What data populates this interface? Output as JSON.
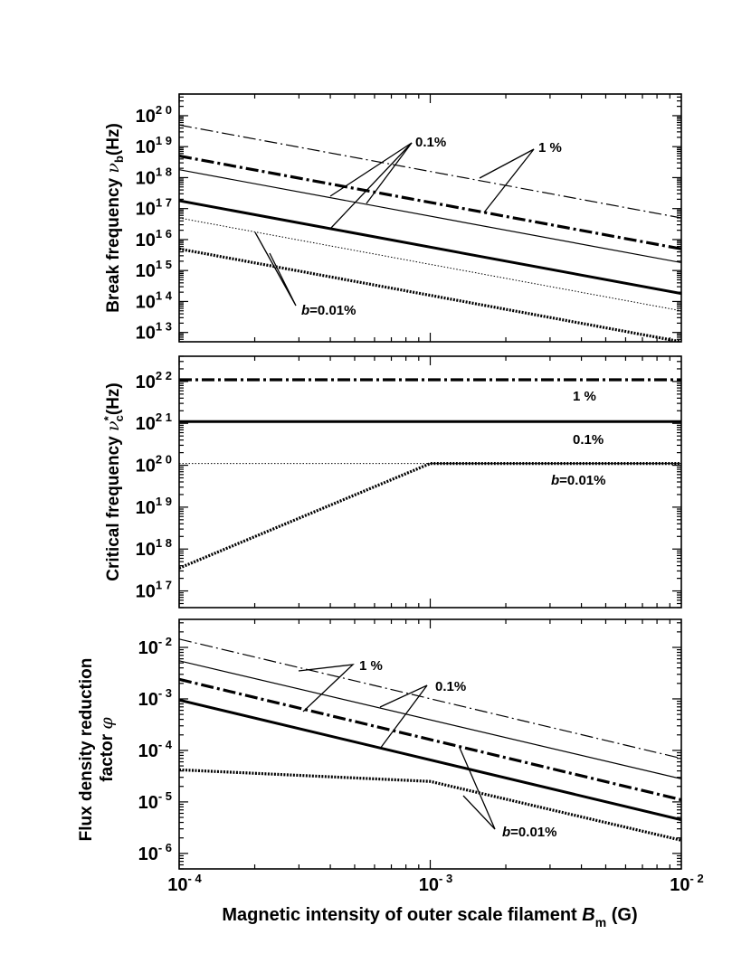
{
  "figure": {
    "xlabel": "Magnetic intensity of outer scale filament B_m (G)",
    "xlabel_parts": {
      "main": "Magnetic intensity of outer scale filament ",
      "symbol": "B",
      "sub": "m",
      "unit": " (G)"
    }
  },
  "chart_data": [
    {
      "type": "line",
      "ylabel": "Break frequency ν_b(Hz)",
      "ylabel_parts": {
        "main": "Break frequency ",
        "symbol": "ν",
        "sub": "b",
        "unit": "(Hz)"
      },
      "xscale": "log",
      "yscale": "log",
      "xlim": [
        0.0001,
        0.01
      ],
      "ylim": [
        5000000000000.0,
        5e+20
      ],
      "x_tick_labels": [
        "10^-4",
        "10^-3",
        "10^-2"
      ],
      "y_ticks": [
        13,
        14,
        15,
        16,
        17,
        18,
        19,
        20
      ],
      "series": [
        {
          "style": "thin dash-dot",
          "points": [
            [
              0.0001,
              5e+19
            ],
            [
              0.01,
              5e+16
            ]
          ]
        },
        {
          "style": "thick dash-dot",
          "points": [
            [
              0.0001,
              5e+18
            ],
            [
              0.01,
              5000000000000000.0
            ]
          ]
        },
        {
          "style": "thin solid",
          "points": [
            [
              0.0001,
              1.8e+18
            ],
            [
              0.01,
              1800000000000000.0
            ]
          ]
        },
        {
          "style": "thick solid",
          "points": [
            [
              0.0001,
              1.8e+17
            ],
            [
              0.01,
              180000000000000.0
            ]
          ]
        },
        {
          "style": "thin dotted",
          "points": [
            [
              0.0001,
              5e+16
            ],
            [
              0.01,
              50000000000000.0
            ]
          ]
        },
        {
          "style": "thick dotted",
          "points": [
            [
              0.0001,
              5000000000000000.0
            ],
            [
              0.01,
              5000000000000.0
            ]
          ]
        }
      ],
      "annotations": [
        {
          "text": "0.1%"
        },
        {
          "text": "1 %"
        },
        {
          "text": "b=0.01%",
          "italic_prefix": "b",
          "rest": "=0.01%"
        }
      ]
    },
    {
      "type": "line",
      "ylabel": "Critical frequency ν*_c(Hz)",
      "ylabel_parts": {
        "main": "Critical frequency ",
        "symbol": "ν",
        "sup": "*",
        "sub": "c",
        "unit": "(Hz)"
      },
      "xscale": "log",
      "yscale": "log",
      "xlim": [
        0.0001,
        0.01
      ],
      "ylim": [
        4e+16,
        4e+22
      ],
      "y_ticks": [
        17,
        18,
        19,
        20,
        21,
        22
      ],
      "series": [
        {
          "style": "thick dash-dot",
          "points": [
            [
              0.0001,
              1.1e+22
            ],
            [
              0.01,
              1.1e+22
            ]
          ]
        },
        {
          "style": "thick solid",
          "points": [
            [
              0.0001,
              1.1e+21
            ],
            [
              0.01,
              1.1e+21
            ]
          ]
        },
        {
          "style": "thin dotted",
          "points": [
            [
              0.0001,
              1.1e+20
            ],
            [
              0.01,
              1.1e+20
            ]
          ]
        },
        {
          "style": "thick dotted",
          "points": [
            [
              0.0001,
              3.5e+17
            ],
            [
              0.001,
              1.1e+20
            ],
            [
              0.01,
              1.1e+20
            ]
          ]
        }
      ],
      "annotations": [
        {
          "text": "1 %"
        },
        {
          "text": "0.1%"
        },
        {
          "text": "b=0.01%",
          "italic_prefix": "b",
          "rest": "=0.01%"
        }
      ]
    },
    {
      "type": "line",
      "ylabel": "Flux density reduction factor φ",
      "ylabel_parts": {
        "line1": "Flux density reduction",
        "line2": "factor ",
        "symbol": "φ"
      },
      "xscale": "log",
      "yscale": "log",
      "xlim": [
        0.0001,
        0.01
      ],
      "ylim": [
        5e-07,
        0.035
      ],
      "y_ticks": [
        -6,
        -5,
        -4,
        -3,
        -2
      ],
      "series": [
        {
          "style": "thin dash-dot",
          "points": [
            [
              0.0001,
              0.0145
            ],
            [
              0.01,
              7e-05
            ]
          ]
        },
        {
          "style": "thin solid",
          "points": [
            [
              0.0001,
              0.0055
            ],
            [
              0.01,
              2.8e-05
            ]
          ]
        },
        {
          "style": "thick dash-dot",
          "points": [
            [
              0.0001,
              0.0024
            ],
            [
              0.01,
              1.1e-05
            ]
          ]
        },
        {
          "style": "thick solid",
          "points": [
            [
              0.0001,
              0.00095
            ],
            [
              0.01,
              4.5e-06
            ]
          ]
        },
        {
          "style": "thick dotted",
          "points": [
            [
              0.0001,
              4.2e-05
            ],
            [
              0.001,
              2.5e-05
            ],
            [
              0.01,
              1.8e-06
            ]
          ]
        }
      ],
      "annotations": [
        {
          "text": "1 %"
        },
        {
          "text": "0.1%"
        },
        {
          "text": "b=0.01%",
          "italic_prefix": "b",
          "rest": "=0.01%"
        }
      ]
    }
  ]
}
